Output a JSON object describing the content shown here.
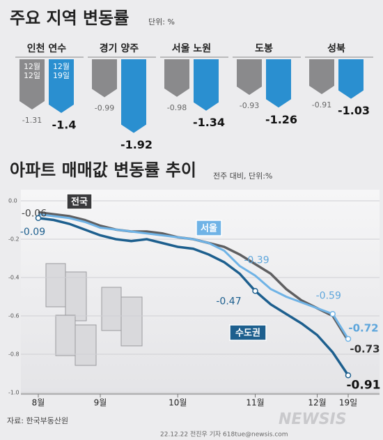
{
  "chart_data": [
    {
      "type": "bar",
      "title": "주요 지역 변동률",
      "subtitle": "단위: %",
      "categories": [
        "인천 연수",
        "경기 양주",
        "서울 노원",
        "도봉",
        "성북"
      ],
      "series": [
        {
          "name": "12월 12일",
          "color": "#8a8a8c",
          "values": [
            -1.31,
            -0.99,
            -0.98,
            -0.93,
            -0.91
          ]
        },
        {
          "name": "12월 19일",
          "color": "#2a8fd0",
          "values": [
            -1.4,
            -1.92,
            -1.34,
            -1.26,
            -1.03
          ]
        }
      ]
    },
    {
      "type": "line",
      "title": "아파트 매매값 변동률 추이",
      "subtitle": "전주 대비, 단위:%",
      "categories": [
        "8월",
        null,
        null,
        null,
        "9월",
        null,
        null,
        null,
        null,
        "10월",
        null,
        null,
        null,
        null,
        "11월",
        null,
        null,
        null,
        "12월",
        null,
        "19일"
      ],
      "series": [
        {
          "name": "전국",
          "color": "#5f5f61",
          "values": [
            -0.06,
            -0.07,
            -0.08,
            -0.1,
            -0.13,
            -0.15,
            -0.16,
            -0.16,
            -0.17,
            -0.19,
            -0.2,
            -0.22,
            -0.24,
            -0.28,
            -0.33,
            -0.38,
            -0.46,
            -0.52,
            -0.56,
            -0.6,
            -0.73
          ]
        },
        {
          "name": "서울",
          "color": "#6fb3e6",
          "values": [
            -0.07,
            -0.08,
            -0.09,
            -0.11,
            -0.14,
            -0.15,
            -0.16,
            -0.17,
            -0.18,
            -0.19,
            -0.2,
            -0.22,
            -0.26,
            -0.34,
            -0.39,
            -0.46,
            -0.5,
            -0.53,
            -0.56,
            -0.59,
            -0.72
          ]
        },
        {
          "name": "수도권",
          "color": "#1d5f8e",
          "values": [
            -0.09,
            -0.1,
            -0.12,
            -0.15,
            -0.18,
            -0.2,
            -0.21,
            -0.2,
            -0.22,
            -0.24,
            -0.25,
            -0.28,
            -0.32,
            -0.38,
            -0.47,
            -0.54,
            -0.59,
            -0.64,
            -0.7,
            -0.79,
            -0.91
          ]
        }
      ],
      "ylim": [
        -1,
        0
      ],
      "yticks": [
        {
          "value": 0,
          "label": "0.0"
        },
        -0.2,
        -0.4,
        -0.6,
        -0.8,
        {
          "value": -1,
          "label": "-1.0"
        }
      ],
      "grid": true
    }
  ],
  "source": "자료: 한국부동산원",
  "credit": "22.12.22 전진우 기자 618tue@newsis.com",
  "logo": "NEWSIS"
}
